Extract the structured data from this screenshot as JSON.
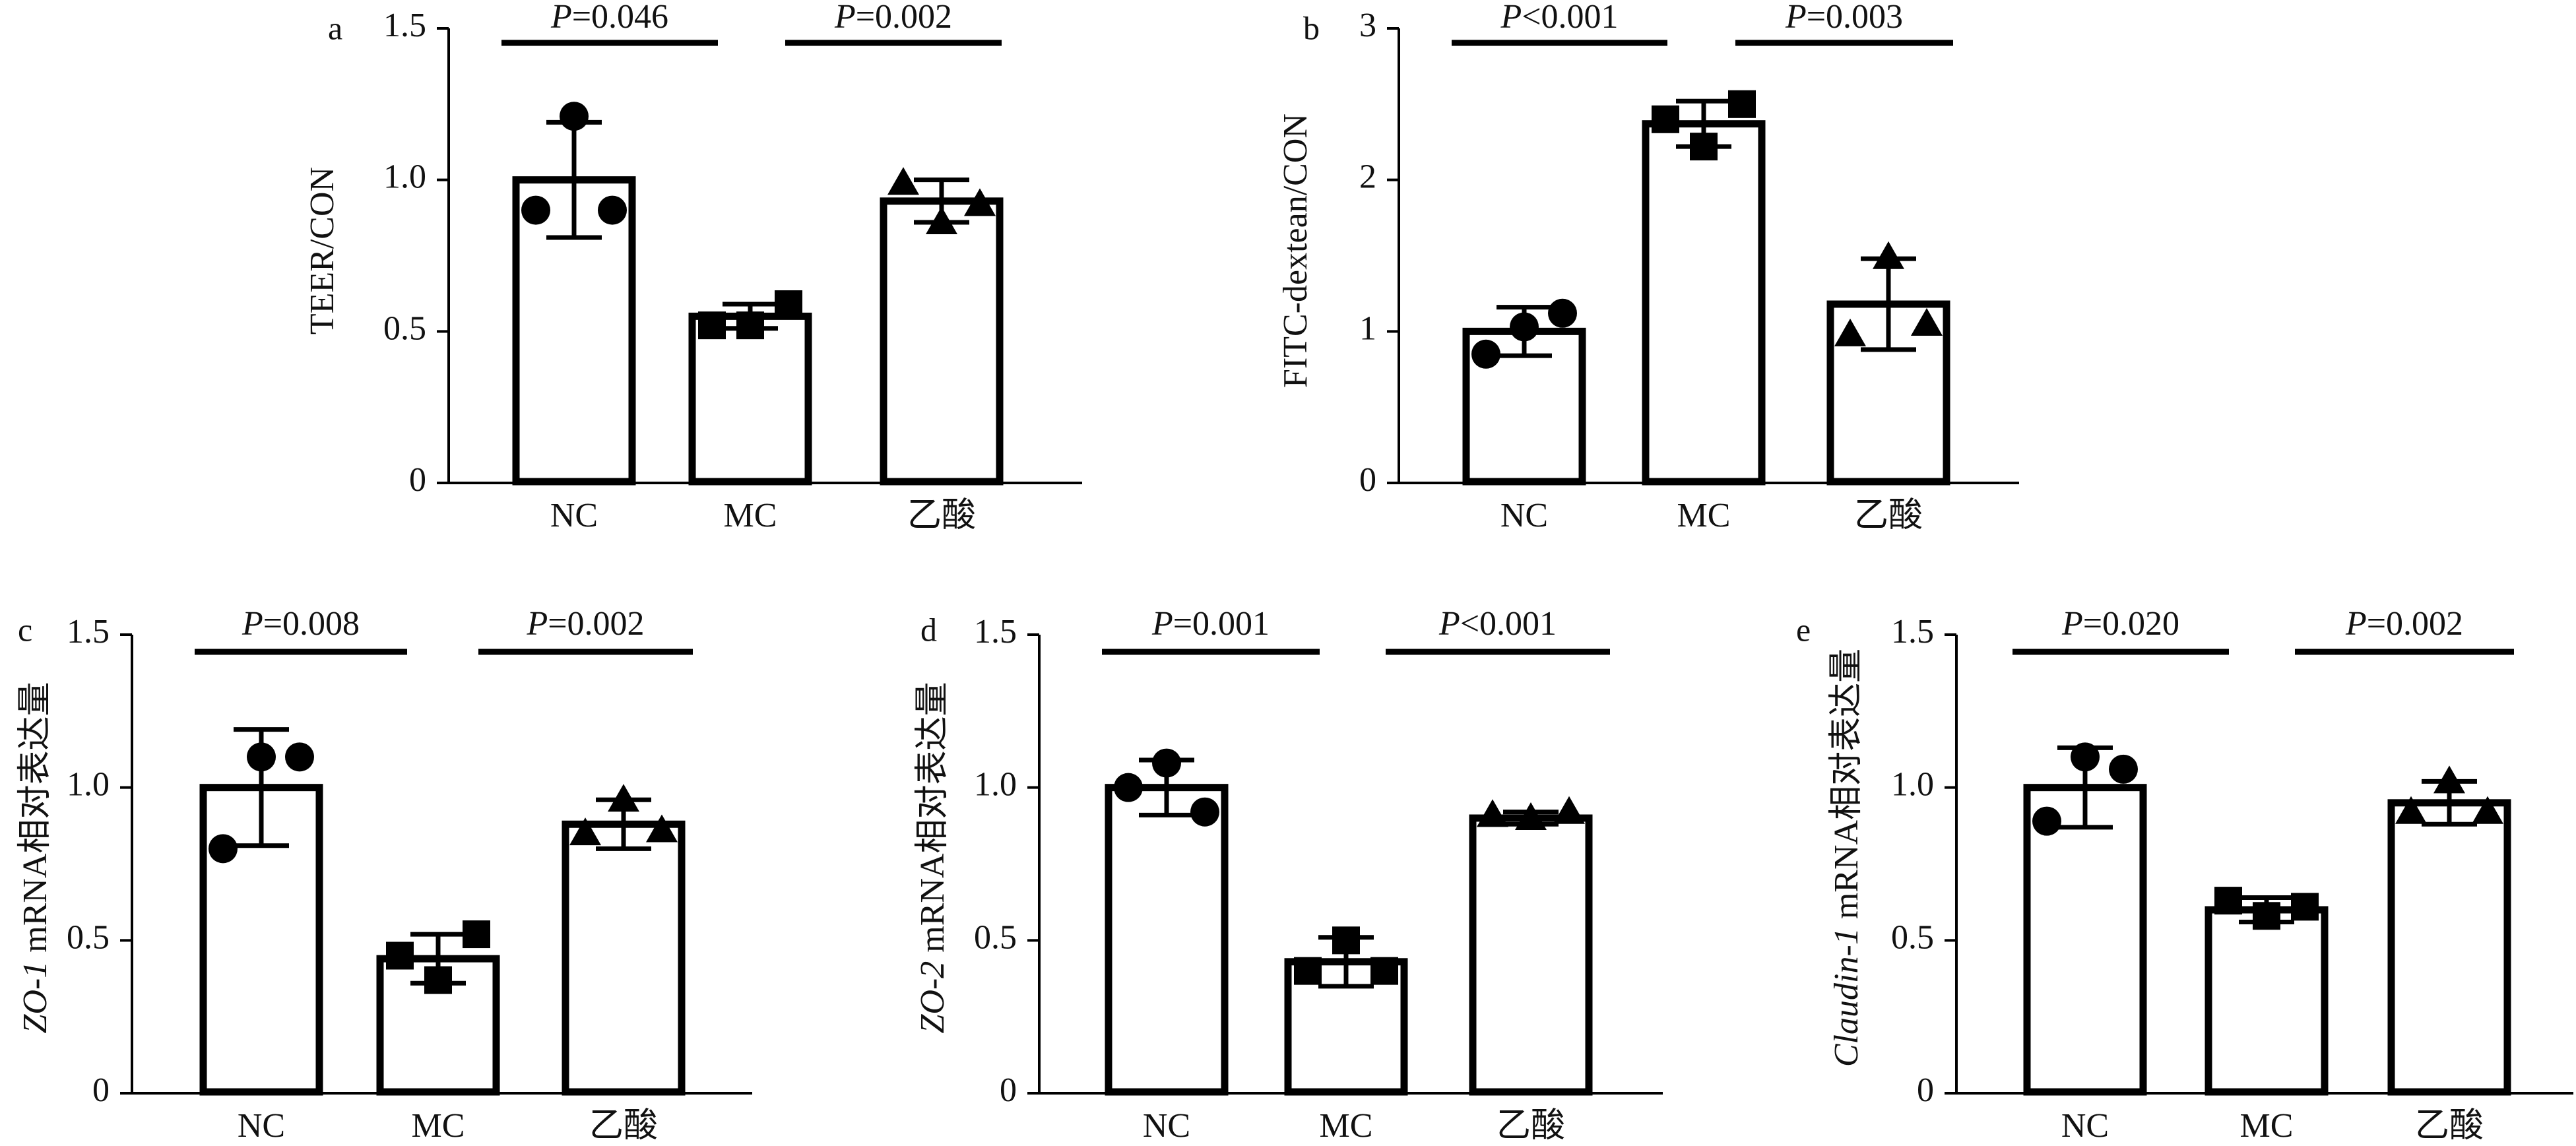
{
  "figure": {
    "panels": [
      {
        "letter": "a",
        "ylabel": "TEER/CON",
        "ylabel_italic": "",
        "comparisons": [
          {
            "label": "P=0.046"
          },
          {
            "label": "P=0.002"
          }
        ]
      },
      {
        "letter": "b",
        "ylabel": "FITC-dextean/CON",
        "ylabel_italic": "",
        "comparisons": [
          {
            "label": "P<0.001"
          },
          {
            "label": "P=0.003"
          }
        ]
      },
      {
        "letter": "c",
        "ylabel": " mRNA相对表达量",
        "ylabel_italic": "ZO-1",
        "comparisons": [
          {
            "label": "P=0.008"
          },
          {
            "label": "P=0.002"
          }
        ]
      },
      {
        "letter": "d",
        "ylabel": " mRNA相对表达量",
        "ylabel_italic": "ZO-2",
        "comparisons": [
          {
            "label": "P=0.001"
          },
          {
            "label": "P<0.001"
          }
        ]
      },
      {
        "letter": "e",
        "ylabel": " mRNA相对表达量",
        "ylabel_italic": "Claudin-1",
        "comparisons": [
          {
            "label": "P=0.020"
          },
          {
            "label": "P=0.002"
          }
        ]
      }
    ]
  },
  "chart_data": [
    {
      "type": "bar",
      "title": "a",
      "ylabel": "TEER/CON",
      "categories": [
        "NC",
        "MC",
        "乙酸"
      ],
      "values": [
        1.0,
        0.55,
        0.93
      ],
      "errors": [
        0.19,
        0.04,
        0.07
      ],
      "points": [
        [
          1.21,
          0.9,
          0.9
        ],
        [
          0.52,
          0.52,
          0.59
        ],
        [
          0.86,
          0.99,
          0.92
        ]
      ],
      "markers": [
        "circle",
        "square",
        "triangle"
      ],
      "ylim": [
        0,
        1.5
      ],
      "yticks": [
        "0",
        "0.5",
        "1.0",
        "1.5"
      ],
      "comparisons": [
        {
          "from": 0,
          "to": 1,
          "label": "P=0.046"
        },
        {
          "from": 1,
          "to": 2,
          "label": "P=0.002"
        }
      ]
    },
    {
      "type": "bar",
      "title": "b",
      "ylabel": "FITC-dextean/CON",
      "categories": [
        "NC",
        "MC",
        "乙酸"
      ],
      "values": [
        1.0,
        2.37,
        1.18
      ],
      "errors": [
        0.16,
        0.15,
        0.3
      ],
      "points": [
        [
          1.03,
          0.85,
          1.12
        ],
        [
          2.22,
          2.4,
          2.5
        ],
        [
          1.49,
          0.98,
          1.05
        ]
      ],
      "markers": [
        "circle",
        "square",
        "triangle"
      ],
      "ylim": [
        0,
        3
      ],
      "yticks": [
        "0",
        "1",
        "2",
        "3"
      ],
      "comparisons": [
        {
          "from": 0,
          "to": 1,
          "label": "P<0.001"
        },
        {
          "from": 1,
          "to": 2,
          "label": "P=0.003"
        }
      ]
    },
    {
      "type": "bar",
      "title": "c",
      "ylabel": "ZO-1 mRNA相对表达量",
      "categories": [
        "NC",
        "MC",
        "乙酸"
      ],
      "values": [
        1.0,
        0.44,
        0.88
      ],
      "errors": [
        0.19,
        0.08,
        0.08
      ],
      "points": [
        [
          1.1,
          0.8,
          1.1
        ],
        [
          0.37,
          0.45,
          0.52
        ],
        [
          0.96,
          0.85,
          0.86
        ]
      ],
      "markers": [
        "circle",
        "square",
        "triangle"
      ],
      "ylim": [
        0,
        1.5
      ],
      "yticks": [
        "0",
        "0.5",
        "1.0",
        "1.5"
      ],
      "comparisons": [
        {
          "from": 0,
          "to": 1,
          "label": "P=0.008"
        },
        {
          "from": 1,
          "to": 2,
          "label": "P=0.002"
        }
      ]
    },
    {
      "type": "bar",
      "title": "d",
      "ylabel": "ZO-2 mRNA相对表达量",
      "categories": [
        "NC",
        "MC",
        "乙酸"
      ],
      "values": [
        1.0,
        0.43,
        0.9
      ],
      "errors": [
        0.09,
        0.08,
        0.02
      ],
      "points": [
        [
          1.08,
          1.0,
          0.92
        ],
        [
          0.5,
          0.4,
          0.4
        ],
        [
          0.9,
          0.91,
          0.92
        ]
      ],
      "markers": [
        "circle",
        "square",
        "triangle"
      ],
      "ylim": [
        0,
        1.5
      ],
      "yticks": [
        "0",
        "0.5",
        "1.0",
        "1.5"
      ],
      "comparisons": [
        {
          "from": 0,
          "to": 1,
          "label": "P=0.001"
        },
        {
          "from": 1,
          "to": 2,
          "label": "P<0.001"
        }
      ]
    },
    {
      "type": "bar",
      "title": "e",
      "ylabel": "Claudin-1 mRNA相对表达量",
      "categories": [
        "NC",
        "MC",
        "乙酸"
      ],
      "values": [
        1.0,
        0.6,
        0.95
      ],
      "errors": [
        0.13,
        0.04,
        0.07
      ],
      "points": [
        [
          1.1,
          0.89,
          1.06
        ],
        [
          0.58,
          0.63,
          0.61
        ],
        [
          1.02,
          0.92,
          0.92
        ]
      ],
      "markers": [
        "circle",
        "square",
        "triangle"
      ],
      "ylim": [
        0,
        1.5
      ],
      "yticks": [
        "0",
        "0.5",
        "1.0",
        "1.5"
      ],
      "comparisons": [
        {
          "from": 0,
          "to": 1,
          "label": "P=0.020"
        },
        {
          "from": 1,
          "to": 2,
          "label": "P=0.002"
        }
      ]
    }
  ]
}
